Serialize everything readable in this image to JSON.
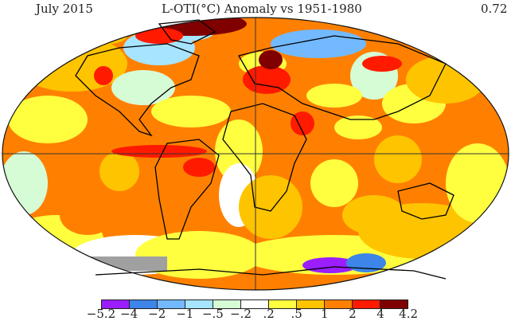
{
  "header": {
    "left": "July 2015",
    "center": "L-OTI(°C) Anomaly vs 1951-1980",
    "right": "0.72"
  },
  "legend": {
    "labels": [
      "−5.2",
      "−4",
      "−2",
      "−1",
      "−.5",
      "−.2",
      ".2",
      ".5",
      "1",
      "2",
      "4",
      "4.2"
    ],
    "colors": [
      "#9a1eff",
      "#3d85e8",
      "#73b9ff",
      "#a6e4ff",
      "#d6fcd6",
      "#ffffff",
      "#ffff40",
      "#ffc400",
      "#ff8000",
      "#ff1a00",
      "#800000"
    ]
  },
  "map": {
    "projection": "robinson-like world map",
    "missing_color": "#a0a0a0",
    "base_color": "#ff8c00"
  }
}
